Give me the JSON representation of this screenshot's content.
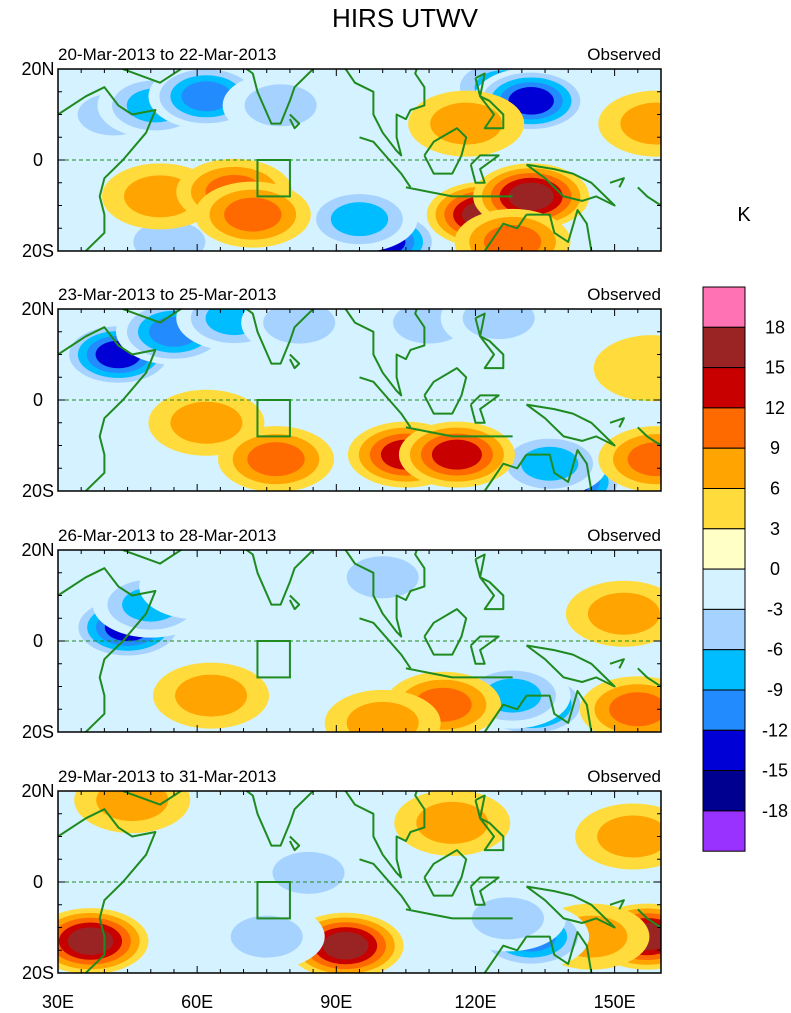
{
  "chart_data": {
    "type": "heatmap",
    "title": "HIRS UTWV",
    "units_label": "K",
    "colorbar": {
      "tick_labels": [
        "18",
        "15",
        "12",
        "9",
        "6",
        "3",
        "0",
        "-3",
        "-6",
        "-9",
        "-12",
        "-15",
        "-18"
      ],
      "levels": [
        18,
        15,
        12,
        9,
        6,
        3,
        0,
        -3,
        -6,
        -9,
        -12,
        -15,
        -18
      ],
      "colors": [
        "#ff73b4",
        "#9a2424",
        "#c80000",
        "#ff6a00",
        "#ffa400",
        "#ffdc3c",
        "#ffffc6",
        "#d4f2ff",
        "#a6d2ff",
        "#00bdff",
        "#228cff",
        "#0000d6",
        "#000090",
        "#9a32ff"
      ]
    },
    "x_tick_labels": [
      "30E",
      "60E",
      "90E",
      "120E",
      "150E"
    ],
    "x_ticks": [
      30,
      60,
      90,
      120,
      150
    ],
    "xlim": [
      30,
      160
    ],
    "y_tick_labels": [
      "20N",
      "0",
      "20S"
    ],
    "y_ticks": [
      20,
      0,
      -20
    ],
    "ylim": [
      -20,
      20
    ],
    "panels": [
      {
        "period": "20-Mar-2013 to 22-Mar-2013",
        "label": "Observed",
        "anomalies": [
          {
            "lon": 42,
            "lat": 10,
            "value": -6
          },
          {
            "lon": 51,
            "lat": 12,
            "value": -9
          },
          {
            "lon": 62,
            "lat": 14,
            "value": -12
          },
          {
            "lon": 78,
            "lat": 12,
            "value": -6
          },
          {
            "lon": 126,
            "lat": 16,
            "value": -9
          },
          {
            "lon": 132,
            "lat": 13,
            "value": -15
          },
          {
            "lon": 100,
            "lat": -18,
            "value": -15
          },
          {
            "lon": 95,
            "lat": -13,
            "value": -9
          },
          {
            "lon": 54,
            "lat": -18,
            "value": -6
          },
          {
            "lon": 52,
            "lat": -8,
            "value": 6
          },
          {
            "lon": 68,
            "lat": -7,
            "value": 9
          },
          {
            "lon": 72,
            "lat": -12,
            "value": 9
          },
          {
            "lon": 118,
            "lat": 8,
            "value": 6
          },
          {
            "lon": 122,
            "lat": -12,
            "value": 15
          },
          {
            "lon": 132,
            "lat": -8,
            "value": 15
          },
          {
            "lon": 128,
            "lat": -18,
            "value": 9
          },
          {
            "lon": 159,
            "lat": 8,
            "value": 6
          }
        ]
      },
      {
        "period": "23-Mar-2013 to 25-Mar-2013",
        "label": "Observed",
        "anomalies": [
          {
            "lon": 43,
            "lat": 10,
            "value": -15
          },
          {
            "lon": 55,
            "lat": 15,
            "value": -12
          },
          {
            "lon": 68,
            "lat": 18,
            "value": -9
          },
          {
            "lon": 82,
            "lat": 17,
            "value": -6
          },
          {
            "lon": 110,
            "lat": 17,
            "value": -6
          },
          {
            "lon": 125,
            "lat": 18,
            "value": -6
          },
          {
            "lon": 140,
            "lat": -18,
            "value": -15
          },
          {
            "lon": 136,
            "lat": -14,
            "value": -9
          },
          {
            "lon": 62,
            "lat": -5,
            "value": 6
          },
          {
            "lon": 77,
            "lat": -13,
            "value": 9
          },
          {
            "lon": 105,
            "lat": -12,
            "value": 12
          },
          {
            "lon": 116,
            "lat": -12,
            "value": 12
          },
          {
            "lon": 159,
            "lat": -13,
            "value": 9
          },
          {
            "lon": 158,
            "lat": 7,
            "value": 3
          }
        ]
      },
      {
        "period": "26-Mar-2013 to 28-Mar-2013",
        "label": "Observed",
        "anomalies": [
          {
            "lon": 45,
            "lat": 3,
            "value": -15
          },
          {
            "lon": 50,
            "lat": 8,
            "value": -9
          },
          {
            "lon": 60,
            "lat": 12,
            "value": -3
          },
          {
            "lon": 100,
            "lat": 14,
            "value": -6
          },
          {
            "lon": 132,
            "lat": -14,
            "value": -15
          },
          {
            "lon": 128,
            "lat": -12,
            "value": -9
          },
          {
            "lon": 152,
            "lat": 6,
            "value": 6
          },
          {
            "lon": 155,
            "lat": -15,
            "value": 9
          },
          {
            "lon": 113,
            "lat": -14,
            "value": 9
          },
          {
            "lon": 100,
            "lat": -18,
            "value": 6
          },
          {
            "lon": 63,
            "lat": -12,
            "value": 6
          }
        ]
      },
      {
        "period": "29-Mar-2013 to 31-Mar-2013",
        "label": "Observed",
        "anomalies": [
          {
            "lon": 37,
            "lat": -13,
            "value": 15
          },
          {
            "lon": 46,
            "lat": 18,
            "value": 6
          },
          {
            "lon": 92,
            "lat": -14,
            "value": 15
          },
          {
            "lon": 115,
            "lat": 13,
            "value": 6
          },
          {
            "lon": 154,
            "lat": 10,
            "value": 6
          },
          {
            "lon": 157,
            "lat": -12,
            "value": 15
          },
          {
            "lon": 145,
            "lat": -12,
            "value": 6
          },
          {
            "lon": 84,
            "lat": 2,
            "value": -6
          },
          {
            "lon": 75,
            "lat": -12,
            "value": -6
          },
          {
            "lon": 132,
            "lat": -12,
            "value": -12
          },
          {
            "lon": 127,
            "lat": -8,
            "value": -6
          }
        ]
      }
    ]
  }
}
